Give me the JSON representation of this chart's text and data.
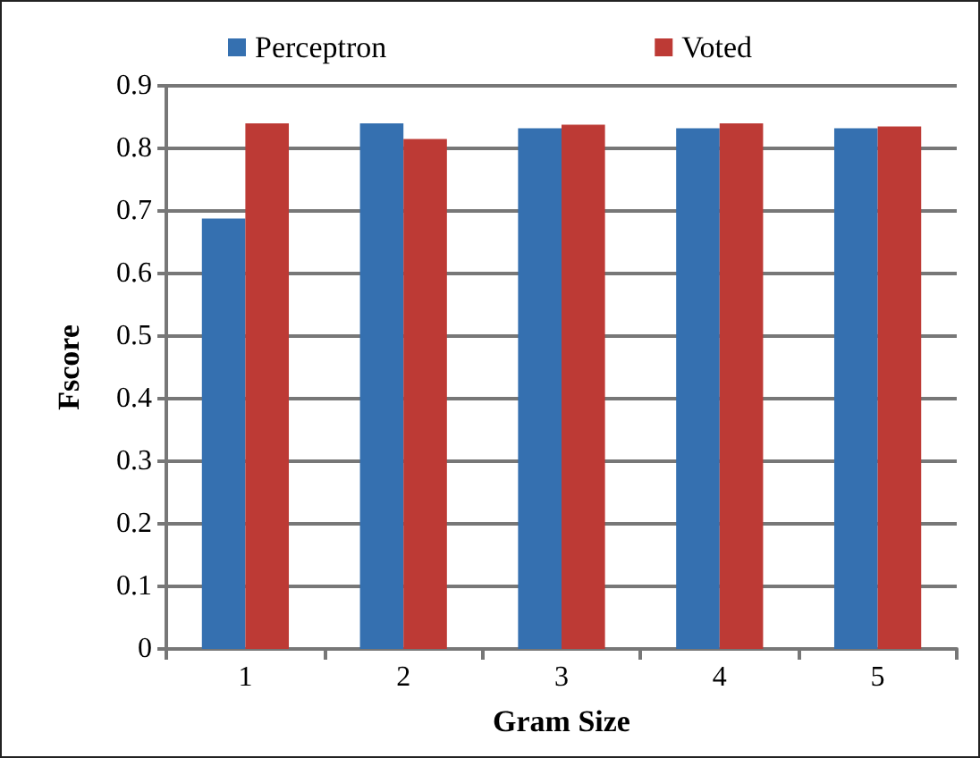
{
  "chart_data": {
    "type": "bar",
    "xlabel": "Gram Size",
    "ylabel": "Fscore",
    "categories": [
      "1",
      "2",
      "3",
      "4",
      "5"
    ],
    "series": [
      {
        "name": "Perceptron",
        "color": "#3570b0",
        "values": [
          0.688,
          0.84,
          0.832,
          0.832,
          0.832
        ]
      },
      {
        "name": "Voted",
        "color": "#bd3a35",
        "values": [
          0.84,
          0.815,
          0.838,
          0.84,
          0.835
        ]
      }
    ],
    "ylim": [
      0,
      0.9
    ],
    "yticks": [
      0,
      0.1,
      0.2,
      0.3,
      0.4,
      0.5,
      0.6,
      0.7,
      0.8,
      0.9
    ],
    "grid": "y",
    "legend": "top"
  }
}
